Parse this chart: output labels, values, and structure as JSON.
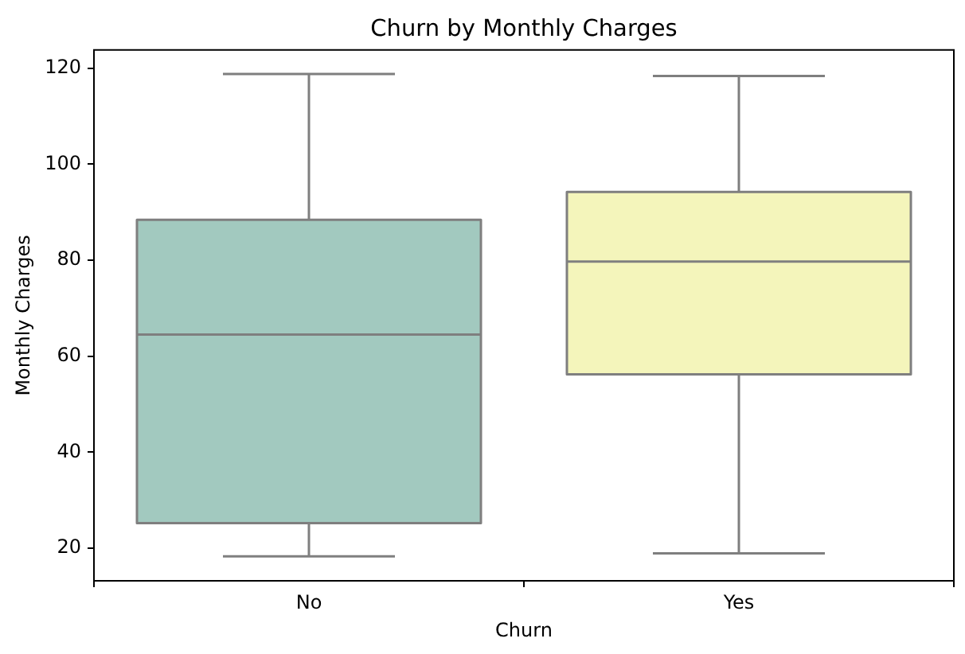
{
  "chart_data": {
    "type": "box",
    "title": "Churn by Monthly Charges",
    "xlabel": "Churn",
    "ylabel": "Monthly Charges",
    "categories": [
      "No",
      "Yes"
    ],
    "colors": [
      "#a2c9bf",
      "#f4f5bb"
    ],
    "boxes": [
      {
        "low": 18.3,
        "q1": 25.2,
        "median": 64.5,
        "q3": 88.4,
        "high": 118.8
      },
      {
        "low": 18.9,
        "q1": 56.2,
        "median": 79.7,
        "q3": 94.2,
        "high": 118.4
      }
    ],
    "ylim": [
      13.2,
      123.8
    ],
    "yticks": [
      20,
      40,
      60,
      80,
      100,
      120
    ]
  }
}
